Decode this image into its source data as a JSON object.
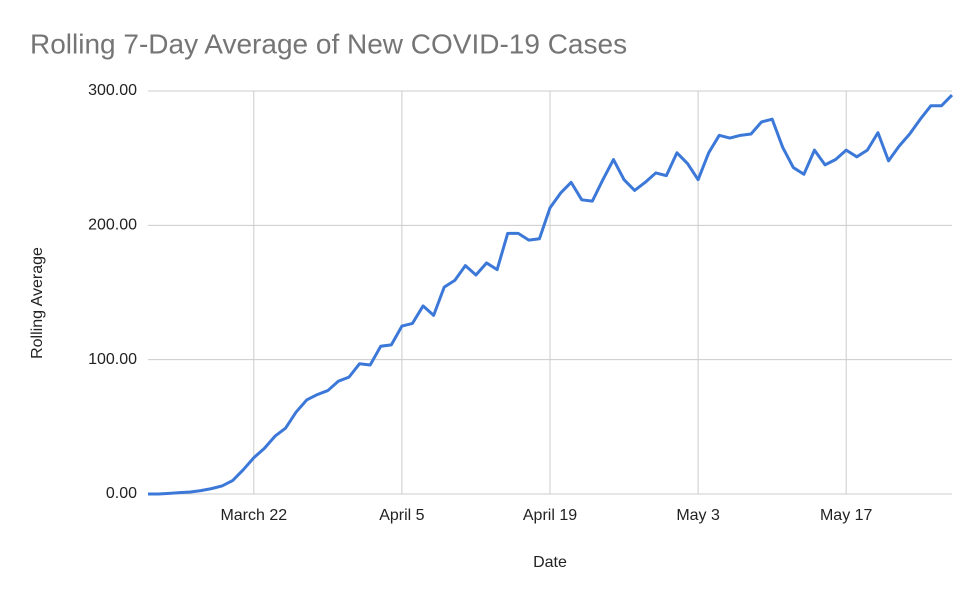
{
  "chart_data": {
    "type": "line",
    "title": "Rolling 7-Day Average of New COVID-19 Cases",
    "x_label": "Date",
    "y_label": "Rolling Average",
    "categories": [
      null,
      null,
      null,
      null,
      null,
      null,
      null,
      null,
      null,
      null,
      "March 22",
      null,
      null,
      null,
      null,
      null,
      null,
      null,
      null,
      null,
      null,
      null,
      null,
      null,
      "April 5",
      null,
      null,
      null,
      null,
      null,
      null,
      null,
      null,
      null,
      null,
      null,
      null,
      null,
      "April 19",
      null,
      null,
      null,
      null,
      null,
      null,
      null,
      null,
      null,
      null,
      null,
      null,
      null,
      "May 3",
      null,
      null,
      null,
      null,
      null,
      null,
      null,
      null,
      null,
      null,
      null,
      null,
      null,
      "May 17",
      null,
      null,
      null,
      null,
      null,
      null,
      null,
      null,
      null,
      null
    ],
    "values": [
      0,
      0,
      0.5,
      1,
      1.5,
      2.5,
      4,
      6,
      10,
      18,
      27,
      34,
      43,
      49,
      61,
      70,
      74,
      77,
      84,
      87,
      97,
      96,
      110,
      111,
      125,
      127,
      140,
      133,
      154,
      159,
      170,
      163,
      172,
      167,
      194,
      194,
      189,
      190,
      213,
      224,
      232,
      219,
      218,
      234,
      249,
      234,
      226,
      232,
      239,
      237,
      254,
      246,
      234,
      254,
      267,
      265,
      267,
      268,
      277,
      279,
      258,
      243,
      238,
      256,
      245,
      249,
      256,
      251,
      256,
      269,
      248,
      259,
      268,
      279,
      289,
      289,
      297
    ],
    "color": "#3c78d8",
    "ylim": [
      0,
      300
    ],
    "yticks": [
      {
        "value": 0,
        "label": "0.00"
      },
      {
        "value": 100,
        "label": "100.00"
      },
      {
        "value": 200,
        "label": "200.00"
      },
      {
        "value": 300,
        "label": "300.00"
      }
    ],
    "grid": true
  }
}
